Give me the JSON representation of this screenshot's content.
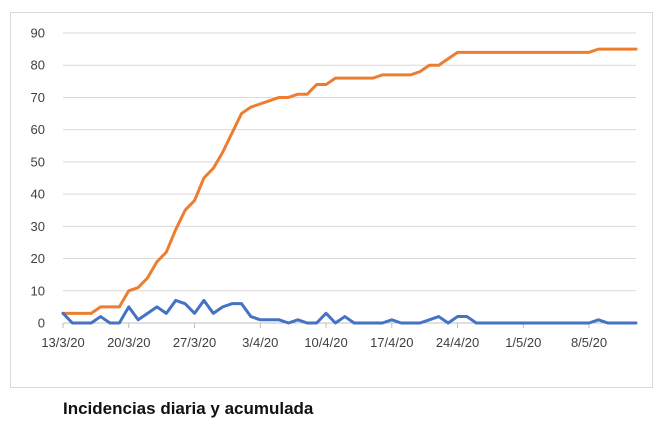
{
  "caption": "Incidencias diaria y acumulada",
  "chart_data": {
    "type": "line",
    "title": "",
    "xlabel": "",
    "ylabel": "",
    "ylim": [
      0,
      90
    ],
    "yticks": [
      0,
      10,
      20,
      30,
      40,
      50,
      60,
      70,
      80,
      90
    ],
    "x_tick_labels": [
      "13/3/20",
      "20/3/20",
      "27/3/20",
      "3/4/20",
      "10/4/20",
      "17/4/20",
      "24/4/20",
      "1/5/20",
      "8/5/20"
    ],
    "x_start": "13/3/20",
    "x_end": "13/5/20",
    "grid": "horizontal",
    "legend": "none",
    "series": [
      {
        "color": "#ED7D31",
        "values": [
          3,
          3,
          3,
          3,
          5,
          5,
          5,
          10,
          11,
          14,
          19,
          22,
          29,
          35,
          38,
          45,
          48,
          53,
          59,
          65,
          67,
          68,
          69,
          70,
          70,
          71,
          71,
          74,
          74,
          76,
          76,
          76,
          76,
          76,
          77,
          77,
          77,
          77,
          78,
          80,
          80,
          82,
          84,
          84,
          84,
          84,
          84,
          84,
          84,
          84,
          84,
          84,
          84,
          84,
          84,
          84,
          84,
          85,
          85,
          85,
          85,
          85
        ]
      },
      {
        "color": "#4472C4",
        "values": [
          3,
          0,
          0,
          0,
          2,
          0,
          0,
          5,
          1,
          3,
          5,
          3,
          7,
          6,
          3,
          7,
          3,
          5,
          6,
          6,
          2,
          1,
          1,
          1,
          0,
          1,
          0,
          0,
          3,
          0,
          2,
          0,
          0,
          0,
          0,
          1,
          0,
          0,
          0,
          1,
          2,
          0,
          2,
          2,
          0,
          0,
          0,
          0,
          0,
          0,
          0,
          0,
          0,
          0,
          0,
          0,
          0,
          1,
          0,
          0,
          0,
          0
        ]
      }
    ]
  }
}
